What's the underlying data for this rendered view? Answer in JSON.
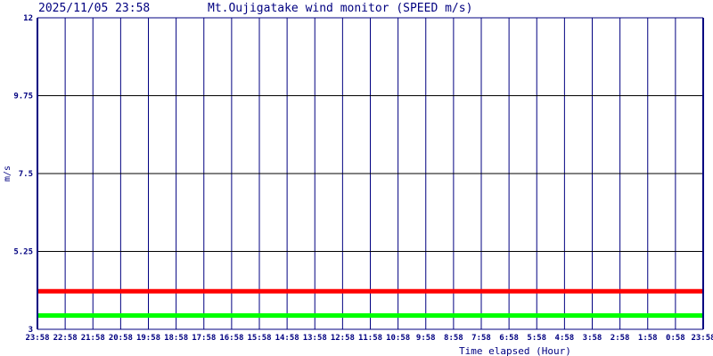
{
  "chart_data": {
    "type": "line",
    "timestamp": "2025/11/05 23:58",
    "title": "Mt.Oujigatake wind monitor (SPEED m/s)",
    "xlabel": "Time elapsed (Hour)",
    "ylabel": "m/s",
    "ylim": [
      3,
      12
    ],
    "yticks": [
      "3",
      "5.25",
      "7.5",
      "9.75",
      "12"
    ],
    "xticks": [
      "23:58",
      "22:58",
      "21:58",
      "20:58",
      "19:58",
      "18:58",
      "17:58",
      "16:58",
      "15:58",
      "14:58",
      "13:58",
      "12:58",
      "11:58",
      "10:58",
      "9:58",
      "8:58",
      "7:58",
      "6:58",
      "5:58",
      "4:58",
      "3:58",
      "2:58",
      "1:58",
      "0:58",
      "23:58"
    ],
    "grid": true,
    "series": [
      {
        "color": "#ff0000",
        "values": [
          4.1,
          4.1
        ]
      },
      {
        "color": "#00ff00",
        "values": [
          3.4,
          3.4
        ]
      }
    ],
    "colors": {
      "axis": "#000080",
      "hgrid": "#000000"
    }
  }
}
